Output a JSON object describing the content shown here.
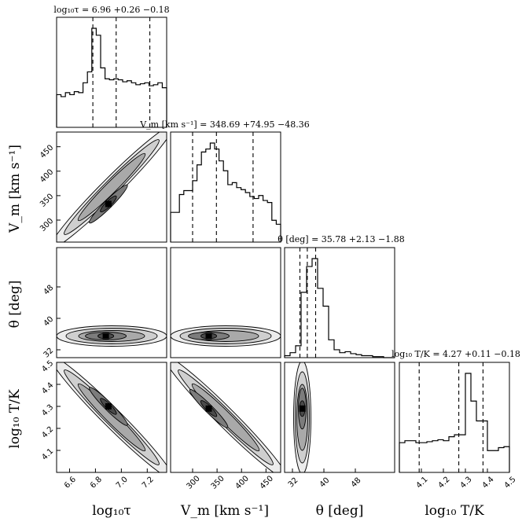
{
  "chart_data": {
    "type": "corner",
    "parameters": [
      {
        "id": "logtau",
        "axis_label": "log₁₀τ",
        "title": "log₁₀τ = 6.96 +0.26 −0.18",
        "range": [
          6.5,
          7.35
        ],
        "ticks": [
          {
            "v": 6.6,
            "t": "6.6"
          },
          {
            "v": 6.8,
            "t": "6.8"
          },
          {
            "v": 7.0,
            "t": "7.0"
          },
          {
            "v": 7.2,
            "t": "7.2"
          }
        ],
        "quantiles": [
          6.78,
          6.96,
          7.22
        ],
        "hist": [
          0.33,
          0.31,
          0.35,
          0.33,
          0.36,
          0.35,
          0.45,
          0.56,
          1.0,
          0.93,
          0.6,
          0.49,
          0.48,
          0.49,
          0.48,
          0.46,
          0.47,
          0.45,
          0.43,
          0.44,
          0.45,
          0.42,
          0.43,
          0.45,
          0.4
        ]
      },
      {
        "id": "vm",
        "axis_label": "V_m [km s⁻¹]",
        "title": "V_m [km s⁻¹] = 348.69 +74.95 −48.36",
        "range": [
          255,
          480
        ],
        "ticks": [
          {
            "v": 300,
            "t": "300"
          },
          {
            "v": 350,
            "t": "350"
          },
          {
            "v": 400,
            "t": "400"
          },
          {
            "v": 450,
            "t": "450"
          }
        ],
        "y_ticks": [
          {
            "v": 300,
            "t": "300"
          },
          {
            "v": 350,
            "t": "350"
          },
          {
            "v": 400,
            "t": "400"
          },
          {
            "v": 450,
            "t": "450"
          }
        ],
        "quantiles": [
          300,
          348.69,
          423.6
        ],
        "hist": [
          0.3,
          0.3,
          0.48,
          0.52,
          0.52,
          0.62,
          0.78,
          0.91,
          0.94,
          1.0,
          0.94,
          0.82,
          0.72,
          0.58,
          0.6,
          0.55,
          0.53,
          0.5,
          0.46,
          0.44,
          0.47,
          0.42,
          0.4,
          0.22,
          0.18
        ]
      },
      {
        "id": "theta",
        "axis_label": "θ [deg]",
        "title": "θ [deg] = 35.78 +2.13 −1.88",
        "range": [
          30,
          58
        ],
        "ticks": [
          {
            "v": 32,
            "t": "32"
          },
          {
            "v": 40,
            "t": "40"
          },
          {
            "v": 48,
            "t": "48"
          }
        ],
        "y_ticks": [
          {
            "v": 32,
            "t": "32"
          },
          {
            "v": 40,
            "t": "40"
          },
          {
            "v": 48,
            "t": "48"
          }
        ],
        "quantiles": [
          33.9,
          35.78,
          37.9
        ],
        "hist": [
          0.02,
          0.05,
          0.12,
          0.66,
          0.92,
          1.0,
          0.7,
          0.52,
          0.18,
          0.08,
          0.05,
          0.06,
          0.04,
          0.03,
          0.02,
          0.02,
          0.01,
          0.01,
          0.0,
          0.0
        ]
      },
      {
        "id": "logT",
        "axis_label": "log₁₀ T/K",
        "title": "log₁₀ T/K = 4.27 +0.11 −0.18",
        "range": [
          4.0,
          4.5
        ],
        "ticks": [
          {
            "v": 4.1,
            "t": "4.1"
          },
          {
            "v": 4.2,
            "t": "4.2"
          },
          {
            "v": 4.3,
            "t": "4.3"
          },
          {
            "v": 4.4,
            "t": "4.4"
          },
          {
            "v": 4.5,
            "t": "4.5"
          }
        ],
        "y_ticks": [
          {
            "v": 4.1,
            "t": "4.1"
          },
          {
            "v": 4.2,
            "t": "4.2"
          },
          {
            "v": 4.3,
            "t": "4.3"
          },
          {
            "v": 4.4,
            "t": "4.4"
          },
          {
            "v": 4.5,
            "t": "4.5"
          }
        ],
        "quantiles": [
          4.09,
          4.27,
          4.38
        ],
        "hist": [
          0.3,
          0.32,
          0.32,
          0.3,
          0.3,
          0.31,
          0.32,
          0.33,
          0.32,
          0.36,
          0.38,
          0.38,
          1.0,
          0.72,
          0.52,
          0.52,
          0.22,
          0.22,
          0.25,
          0.26
        ]
      }
    ],
    "joint_peaks": [
      {
        "x": "logtau",
        "y": "vm",
        "peak": [
          6.9,
          333
        ],
        "trend": "positive-diagonal"
      },
      {
        "x": "logtau",
        "y": "theta",
        "peak": [
          6.88,
          35.5
        ],
        "trend": "horizontal-band"
      },
      {
        "x": "vm",
        "y": "theta",
        "peak": [
          333,
          35.5
        ],
        "trend": "horizontal-band"
      },
      {
        "x": "logtau",
        "y": "logT",
        "peak": [
          6.9,
          4.3
        ],
        "trend": "negative-diagonal"
      },
      {
        "x": "vm",
        "y": "logT",
        "peak": [
          333,
          4.29
        ],
        "trend": "negative-diagonal"
      },
      {
        "x": "theta",
        "y": "logT",
        "peak": [
          34.5,
          4.29
        ],
        "trend": "vertical-band"
      }
    ]
  }
}
